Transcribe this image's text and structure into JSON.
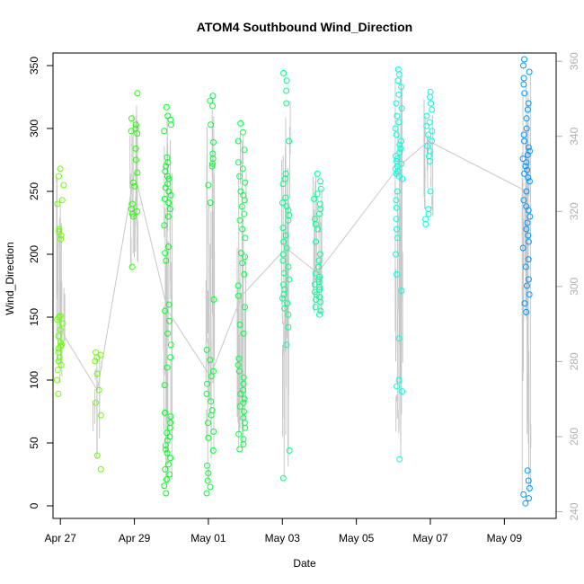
{
  "chart_data": {
    "type": "scatter",
    "title": "ATOM4 Southbound Wind_Direction",
    "xlabel": "Date",
    "ylabel": "Wind_Direction",
    "ylim": [
      -10,
      360
    ],
    "y2lim": [
      238.2,
      362.2
    ],
    "xlim": [
      -0.2,
      13.4
    ],
    "x_ticks": [
      {
        "value": 0,
        "label": "Apr 27"
      },
      {
        "value": 2,
        "label": "Apr 29"
      },
      {
        "value": 4,
        "label": "May 01"
      },
      {
        "value": 6,
        "label": "May 03"
      },
      {
        "value": 8,
        "label": "May 05"
      },
      {
        "value": 10,
        "label": "May 07"
      },
      {
        "value": 12,
        "label": "May 09"
      }
    ],
    "y_ticks": [
      0,
      50,
      100,
      150,
      200,
      250,
      300,
      350
    ],
    "y2_ticks": [
      240,
      260,
      280,
      300,
      320,
      340,
      360
    ],
    "x_unit": "days since Apr 27",
    "series": [
      {
        "name": "Wind_Direction",
        "x_center": 0.0,
        "color": "#66ff00",
        "values": [
          268,
          262,
          255,
          243,
          240,
          220,
          218,
          215,
          212,
          151,
          150,
          148,
          145,
          140,
          135,
          130,
          128,
          127,
          125,
          122,
          118,
          115,
          112,
          108,
          100,
          89
        ]
      },
      {
        "name": "Wind_Direction",
        "x_center": 1.0,
        "color": "#66ff00",
        "values": [
          122,
          120,
          118,
          115,
          105,
          92,
          82,
          72,
          40,
          29
        ]
      },
      {
        "name": "Wind_Direction",
        "x_center": 2.0,
        "color": "#22ff00",
        "values": [
          328,
          308,
          303,
          300,
          298,
          296,
          284,
          275,
          265,
          257,
          254,
          240,
          236,
          234,
          232,
          230,
          190
        ]
      },
      {
        "name": "Wind_Direction",
        "x_center": 2.9,
        "color": "#00ff22",
        "values": [
          317,
          310,
          307,
          303,
          298,
          277,
          273,
          270,
          266,
          262,
          260,
          256,
          253,
          250,
          247,
          244,
          241,
          236,
          230,
          223,
          206,
          201,
          195,
          160,
          155,
          147,
          137,
          128,
          118,
          110,
          96,
          74,
          71,
          66,
          62,
          58,
          55,
          52,
          48,
          45,
          42,
          38,
          33,
          29,
          25,
          21,
          16,
          10
        ]
      },
      {
        "name": "Wind_Direction",
        "x_center": 4.05,
        "color": "#00ff33",
        "values": [
          326,
          322,
          318,
          303,
          289,
          280,
          276,
          272,
          270,
          255,
          241,
          164,
          124,
          116,
          107,
          103,
          97,
          89,
          83,
          76,
          72,
          66,
          59,
          54,
          44,
          32,
          26,
          20,
          15,
          10
        ]
      },
      {
        "name": "Wind_Direction",
        "x_center": 4.9,
        "color": "#00ff44",
        "values": [
          304,
          297,
          290,
          283,
          273,
          268,
          262,
          257,
          250,
          247,
          243,
          238,
          232,
          227,
          220,
          213,
          201,
          198,
          193,
          184,
          175,
          167,
          158,
          144,
          137,
          117,
          112,
          107,
          102,
          97,
          92,
          89,
          85,
          82,
          79,
          75,
          70,
          66,
          62,
          57,
          53,
          49,
          45
        ]
      },
      {
        "name": "Wind_Direction",
        "x_center": 6.1,
        "color": "#00ff88",
        "values": [
          344,
          338,
          330,
          320,
          290,
          264,
          260,
          256,
          245,
          241,
          238,
          235,
          231,
          227,
          221,
          215,
          210,
          205,
          200,
          195,
          190,
          185,
          180,
          176,
          172,
          168,
          165,
          161,
          157,
          152,
          142,
          128,
          44,
          22
        ]
      },
      {
        "name": "Wind_Direction",
        "x_center": 6.95,
        "color": "#00ff99",
        "values": [
          264,
          258,
          252,
          248,
          244,
          240,
          236,
          232,
          228,
          224,
          220,
          210,
          200,
          195,
          190,
          185,
          182,
          180,
          178,
          176,
          174,
          172,
          170,
          168,
          166,
          164,
          162,
          158,
          155,
          152
        ]
      },
      {
        "name": "Wind_Direction",
        "x_center": 9.15,
        "color": "#00ffdd",
        "values": [
          347,
          343,
          338,
          333,
          327,
          320,
          316,
          310,
          305,
          300,
          295,
          290,
          287,
          284,
          281,
          278,
          276,
          274,
          272,
          270,
          268,
          266,
          264,
          262,
          260,
          250,
          243,
          237,
          228,
          220,
          213,
          200,
          184,
          171,
          133,
          100,
          95,
          91,
          37
        ]
      },
      {
        "name": "Wind_Direction",
        "x_center": 9.95,
        "color": "#00ffdd",
        "values": [
          329,
          325,
          320,
          315,
          310,
          305,
          302,
          298,
          295,
          290,
          286,
          282,
          278,
          274,
          250,
          236,
          232,
          228,
          224
        ]
      },
      {
        "name": "Wind_Direction",
        "x_center": 12.6,
        "color": "#0099ff",
        "values": [
          355,
          350,
          345,
          340,
          335,
          328,
          320,
          315,
          308,
          300,
          295,
          290,
          285,
          282,
          279,
          276,
          273,
          270,
          267,
          264,
          261,
          258,
          250,
          243,
          238,
          235,
          230,
          225,
          220,
          215,
          210,
          205,
          196,
          190,
          180,
          175,
          168,
          161,
          154,
          28,
          20,
          14,
          9,
          6,
          2
        ]
      }
    ]
  }
}
